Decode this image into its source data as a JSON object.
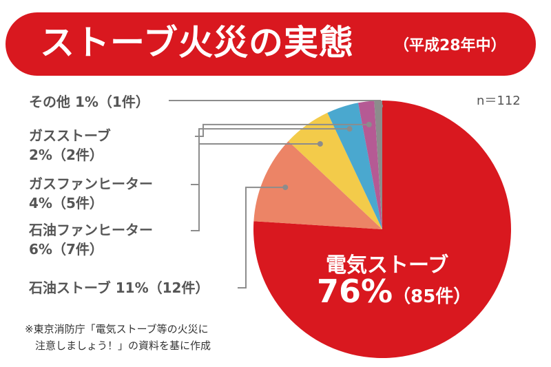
{
  "header": {
    "title": "ストーブ火災の実態",
    "subtitle": "（平成28年中）"
  },
  "colors": {
    "banner": "#d9181f",
    "electric_stove": "#d9181f",
    "oil_stove": "#ec8466",
    "oil_fan_heater": "#f3cb4a",
    "gas_fan_heater": "#4aa8cf",
    "gas_stove": "#b55a94",
    "other": "#8c8c8c"
  },
  "chart_data": {
    "type": "pie",
    "sample_size": "n＝112",
    "slices": [
      {
        "name": "電気ストーブ",
        "percent": 76,
        "count": 85,
        "percent_label": "76%",
        "count_label": "（85件）",
        "color": "#d9181f"
      },
      {
        "name": "石油ストーブ",
        "percent": 11,
        "count": 12,
        "percent_label": "11%",
        "count_label": "（12件）",
        "color": "#ec8466"
      },
      {
        "name": "石油ファンヒーター",
        "percent": 6,
        "count": 7,
        "percent_label": "6%",
        "count_label": "（7件）",
        "color": "#f3cb4a"
      },
      {
        "name": "ガスファンヒーター",
        "percent": 4,
        "count": 5,
        "percent_label": "4%",
        "count_label": "（5件）",
        "color": "#4aa8cf"
      },
      {
        "name": "ガスストーブ",
        "percent": 2,
        "count": 2,
        "percent_label": "2%",
        "count_label": "（2件）",
        "color": "#b55a94"
      },
      {
        "name": "その他",
        "percent": 1,
        "count": 1,
        "percent_label": "1%",
        "count_label": "（1件）",
        "color": "#8c8c8c"
      }
    ]
  },
  "labels": {
    "other": "その他 1%（1件）",
    "gas_stove_name": "ガスストーブ",
    "gas_stove_value": "2%（2件）",
    "gas_fan_name": "ガスファンヒーター",
    "gas_fan_value": "4%（5件）",
    "oil_fan_name": "石油ファンヒーター",
    "oil_fan_value": "6%（7件）",
    "oil_stove": "石油ストーブ 11%（12件）",
    "electric_name": "電気ストーブ",
    "electric_pct": "76%",
    "electric_count": "（85件）"
  },
  "source": {
    "line1": "※東京消防庁「電気ストーブ等の火災に",
    "line2": "　注意しましょう！」の資料を基に作成"
  }
}
